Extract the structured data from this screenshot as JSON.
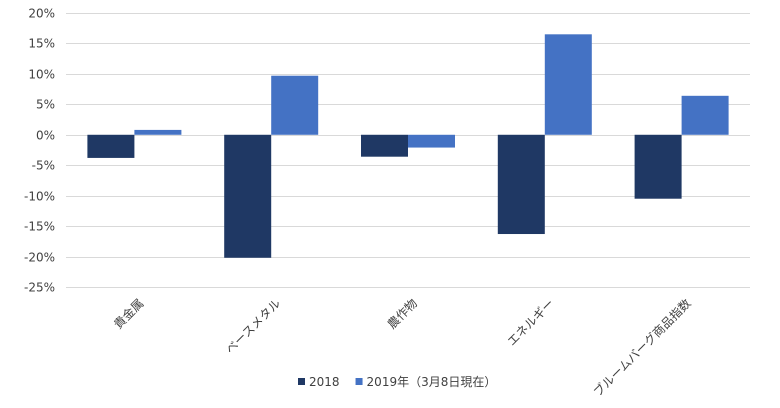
{
  "chart_data": {
    "type": "bar",
    "title": "",
    "xlabel": "",
    "ylabel": "",
    "categories": [
      "貴金属",
      "ベースメタル",
      "農作物",
      "エネルギー",
      "ブルームバーグ商品指数"
    ],
    "series": [
      {
        "name": "2018",
        "values": [
          -3.8,
          -20.2,
          -3.6,
          -16.3,
          -10.5
        ],
        "color": "#1f3864"
      },
      {
        "name": "2019年（3月8日現在）",
        "values": [
          0.8,
          9.7,
          -2.1,
          16.5,
          6.4
        ],
        "color": "#4472c4"
      }
    ],
    "ylim": [
      -25,
      20
    ],
    "yticks": [
      20,
      15,
      10,
      5,
      0,
      -5,
      -10,
      -15,
      -20,
      -25
    ],
    "ytick_format": "percent",
    "grid": true,
    "legend_position": "bottom"
  }
}
